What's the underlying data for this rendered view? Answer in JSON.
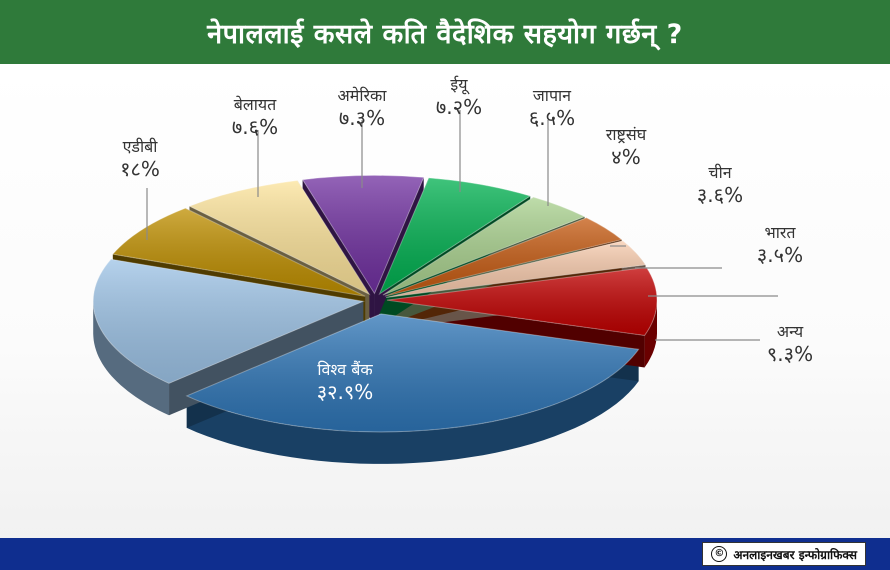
{
  "header": {
    "title": "नेपाललाई कसले कति वैदेशिक सहयोग गर्छन् ?"
  },
  "footer": {
    "credit": "अनलाइनखबर इन्फोग्राफिक्स",
    "copyright_symbol": "©"
  },
  "colors": {
    "header_bg": "#2f7a3a",
    "footer_bg": "#0f2e8f"
  },
  "chart_data": {
    "type": "pie",
    "title": "नेपाललाई कसले कति वैदेशिक सहयोग गर्छन् ?",
    "style": "3d-exploded",
    "slices": [
      {
        "name": "विश्व बैंक",
        "value": 32.9,
        "label": "३२.९%",
        "color": "#2e75b6"
      },
      {
        "name": "अन्य",
        "value": 9.3,
        "label": "९.३%",
        "color": "#c00000"
      },
      {
        "name": "भारत",
        "value": 3.5,
        "label": "३.५%",
        "color": "#f8cbad"
      },
      {
        "name": "चीन",
        "value": 3.6,
        "label": "३.६%",
        "color": "#c55a11"
      },
      {
        "name": "राष्ट्रसंघ",
        "value": 4,
        "label": "४%",
        "color": "#a9d18e"
      },
      {
        "name": "जापान",
        "value": 6.5,
        "label": "६.५%",
        "color": "#00b050"
      },
      {
        "name": "ईयू",
        "value": 7.2,
        "label": "७.२%",
        "color": "#7030a0"
      },
      {
        "name": "अमेरिका",
        "value": 7.3,
        "label": "७.३%",
        "color": "#fce39a"
      },
      {
        "name": "बेलायत",
        "value": 7.6,
        "label": "७.६%",
        "color": "#bf8f00"
      },
      {
        "name": "एडीबी",
        "value": 18,
        "label": "१८%",
        "color": "#9dc3e6"
      }
    ],
    "legend": "none",
    "labels": "leader-lines"
  }
}
